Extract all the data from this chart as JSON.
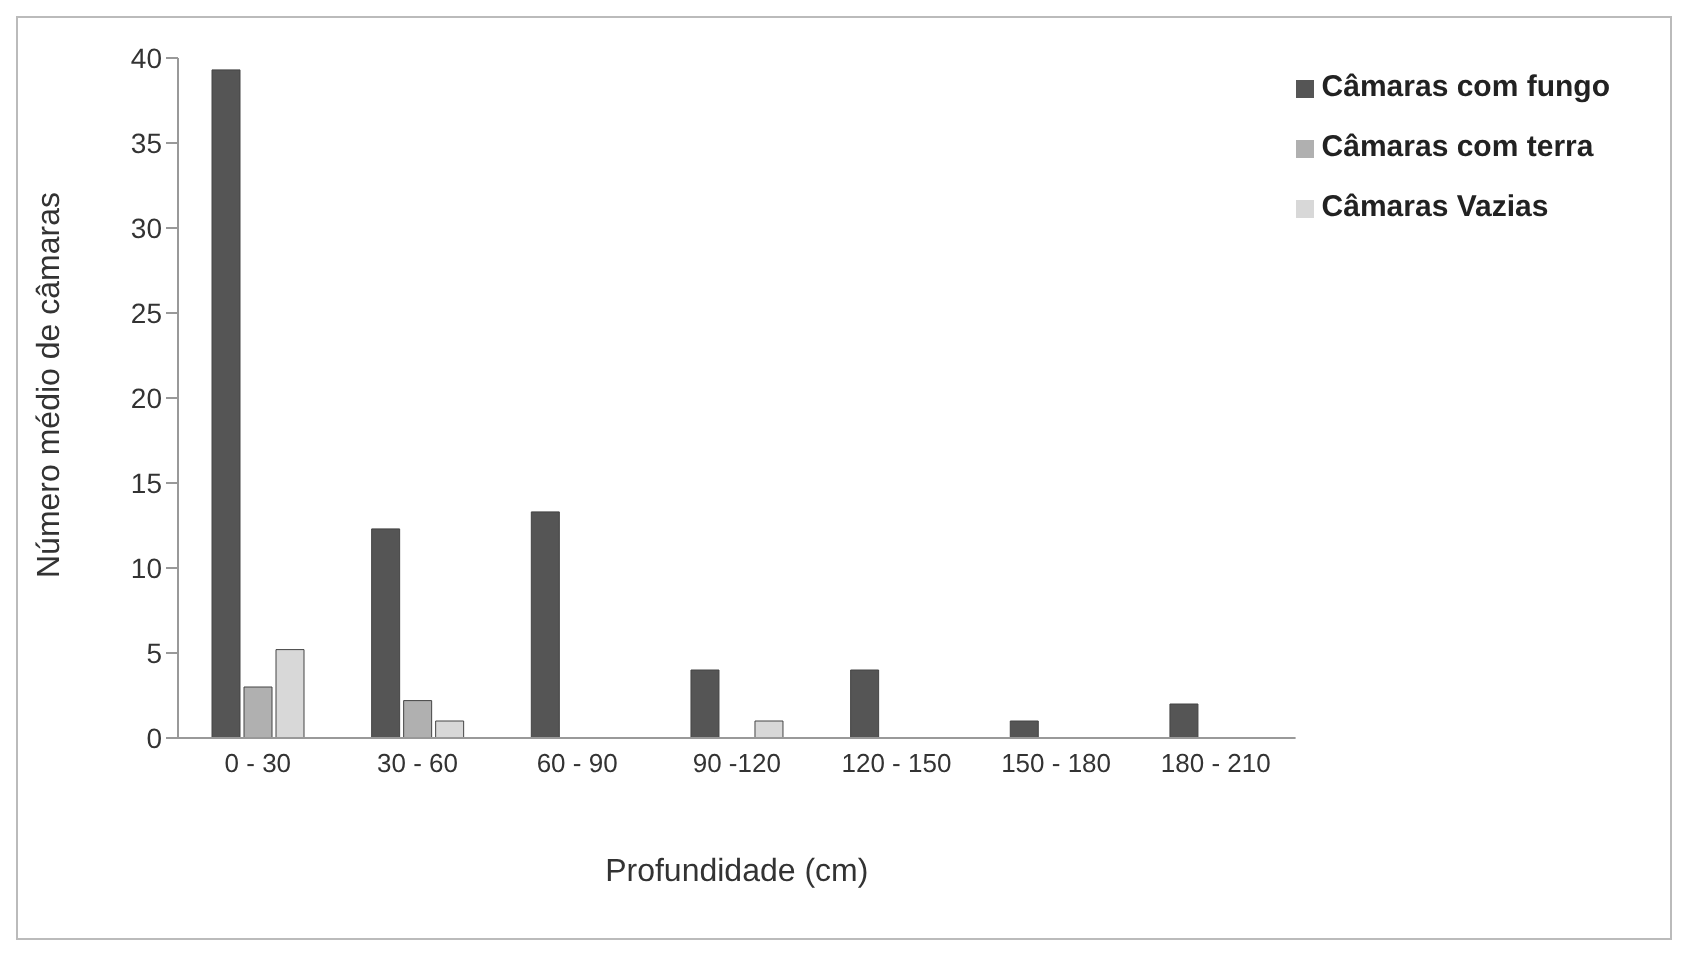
{
  "chart_data": {
    "type": "bar",
    "xlabel": "Profundidade (cm)",
    "ylabel": "Número médio de câmaras",
    "categories": [
      "0 - 30",
      "30 - 60",
      "60 - 90",
      "90 -120",
      "120 - 150",
      "150 - 180",
      "180 - 210"
    ],
    "series": [
      {
        "name": "Câmaras com fungo",
        "color": "#555555",
        "values": [
          39.3,
          12.3,
          13.3,
          4,
          4,
          1,
          2
        ]
      },
      {
        "name": "Câmaras com terra",
        "color": "#b0b0b0",
        "values": [
          3,
          2.2,
          0,
          0,
          0,
          0,
          0
        ]
      },
      {
        "name": "Câmaras Vazias",
        "color": "#d8d8d8",
        "values": [
          5.2,
          1,
          0,
          1,
          0,
          0,
          0
        ]
      }
    ],
    "ylim": [
      0,
      40
    ],
    "yticks": [
      0,
      5,
      10,
      15,
      20,
      25,
      30,
      35,
      40
    ],
    "grid": false,
    "legend": "top right"
  }
}
